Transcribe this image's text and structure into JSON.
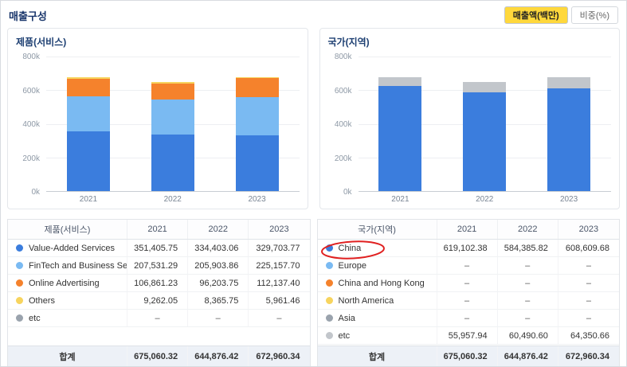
{
  "header": {
    "title": "매출구성",
    "buttons": [
      {
        "label": "매출액(백만)",
        "active": true
      },
      {
        "label": "비중(%)",
        "active": false
      }
    ]
  },
  "axis": {
    "ticks": [
      "800k",
      "600k",
      "400k",
      "200k",
      "0k"
    ]
  },
  "chart_data": [
    {
      "type": "bar",
      "stacked": true,
      "title": "제품(서비스)",
      "categories": [
        "2021",
        "2022",
        "2023"
      ],
      "ylim": [
        0,
        800000
      ],
      "ytick_labels": [
        "0k",
        "200k",
        "400k",
        "600k",
        "800k"
      ],
      "legend_position": "table-below",
      "grid": true,
      "series": [
        {
          "name": "Value-Added Services",
          "color": "#3b7ddd",
          "values": [
            351405.75,
            334403.06,
            329703.77
          ]
        },
        {
          "name": "FinTech and Business Services",
          "color": "#7abaf2",
          "values": [
            207531.29,
            205903.86,
            225157.7
          ]
        },
        {
          "name": "Online Advertising",
          "color": "#f5822c",
          "values": [
            106861.23,
            96203.75,
            112137.4
          ]
        },
        {
          "name": "Others",
          "color": "#f7d45e",
          "values": [
            9262.05,
            8365.75,
            5961.46
          ]
        },
        {
          "name": "etc",
          "color": "#9aa3ad",
          "values": [
            0,
            0,
            0
          ]
        }
      ]
    },
    {
      "type": "bar",
      "stacked": true,
      "title": "국가(지역)",
      "categories": [
        "2021",
        "2022",
        "2023"
      ],
      "ylim": [
        0,
        800000
      ],
      "ytick_labels": [
        "0k",
        "200k",
        "400k",
        "600k",
        "800k"
      ],
      "legend_position": "table-below",
      "grid": true,
      "series": [
        {
          "name": "China",
          "color": "#3b7ddd",
          "values": [
            619102.38,
            584385.82,
            608609.68
          ]
        },
        {
          "name": "etc",
          "color": "#c2c6cb",
          "values": [
            55957.94,
            60490.6,
            64350.66
          ]
        }
      ]
    }
  ],
  "tables": [
    {
      "headers": [
        "제품(서비스)",
        "2021",
        "2022",
        "2023"
      ],
      "rows": [
        {
          "name": "Value-Added Services",
          "color": "#3b7ddd",
          "values": [
            "351,405.75",
            "334,403.06",
            "329,703.77"
          ]
        },
        {
          "name": "FinTech and Business Servi…",
          "color": "#7abaf2",
          "values": [
            "207,531.29",
            "205,903.86",
            "225,157.70"
          ]
        },
        {
          "name": "Online Advertising",
          "color": "#f5822c",
          "values": [
            "106,861.23",
            "96,203.75",
            "112,137.40"
          ]
        },
        {
          "name": "Others",
          "color": "#f7d45e",
          "values": [
            "9,262.05",
            "8,365.75",
            "5,961.46"
          ]
        },
        {
          "name": "etc",
          "color": "#9aa3ad",
          "values": [
            "–",
            "–",
            "–"
          ]
        }
      ],
      "total": {
        "label": "합계",
        "values": [
          "675,060.32",
          "644,876.42",
          "672,960.34"
        ]
      }
    },
    {
      "headers": [
        "국가(지역)",
        "2021",
        "2022",
        "2023"
      ],
      "rows": [
        {
          "name": "China",
          "color": "#3b7ddd",
          "values": [
            "619,102.38",
            "584,385.82",
            "608,609.68"
          ]
        },
        {
          "name": "Europe",
          "color": "#7abaf2",
          "values": [
            "–",
            "–",
            "–"
          ]
        },
        {
          "name": "China and Hong Kong",
          "color": "#f5822c",
          "values": [
            "–",
            "–",
            "–"
          ]
        },
        {
          "name": "North America",
          "color": "#f7d45e",
          "values": [
            "–",
            "–",
            "–"
          ]
        },
        {
          "name": "Asia",
          "color": "#9aa3ad",
          "values": [
            "–",
            "–",
            "–"
          ]
        },
        {
          "name": "etc",
          "color": "#c2c6cb",
          "values": [
            "55,957.94",
            "60,490.60",
            "64,350.66"
          ]
        }
      ],
      "total": {
        "label": "합계",
        "values": [
          "675,060.32",
          "644,876.42",
          "672,960.34"
        ]
      },
      "annotation": {
        "shape": "ellipse",
        "target": "China",
        "color": "#e02020"
      }
    }
  ]
}
